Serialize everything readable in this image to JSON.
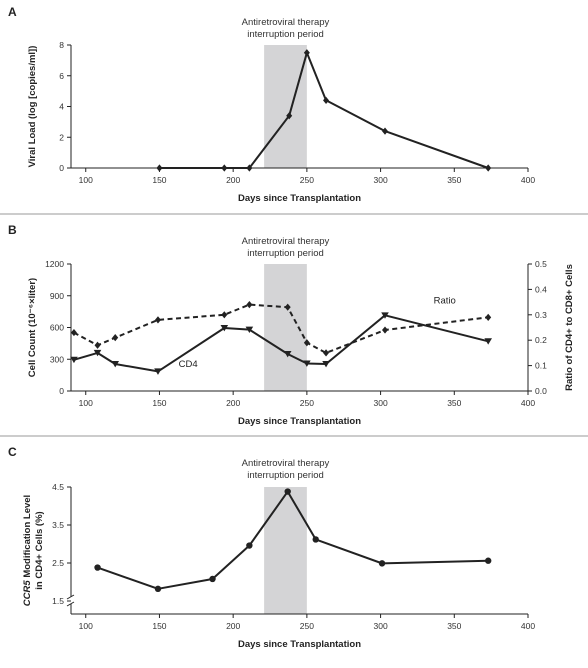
{
  "chart_data": [
    {
      "panel": "A",
      "type": "line",
      "annotation": "Antiretroviral therapy\ninterruption period",
      "shade_x": [
        221,
        250
      ],
      "xlabel": "Days since Transplantation",
      "ylabel": "Viral Load (log [copies/ml])",
      "xlim": [
        90,
        400
      ],
      "xticks": [
        100,
        150,
        200,
        250,
        300,
        350,
        400
      ],
      "ylim": [
        0,
        8
      ],
      "yticks": [
        0,
        2,
        4,
        6,
        8
      ],
      "series": [
        {
          "marker": "diamond",
          "style": "solid",
          "x": [
            150,
            194,
            211,
            238,
            250,
            263,
            303,
            373
          ],
          "y": [
            0,
            0,
            0,
            3.4,
            7.5,
            4.4,
            2.4,
            0
          ]
        }
      ]
    },
    {
      "panel": "B",
      "type": "line",
      "annotation": "Antiretroviral therapy\ninterruption period",
      "shade_x": [
        221,
        250
      ],
      "xlabel": "Days since Transplantation",
      "ylabel": "Cell Count (10⁻⁶×liter)",
      "ylabel_right": "Ratio of CD4+ to CD8+ Cells",
      "xlim": [
        90,
        400
      ],
      "xticks": [
        100,
        150,
        200,
        250,
        300,
        350,
        400
      ],
      "ylim": [
        0,
        1200
      ],
      "yticks": [
        0,
        300,
        600,
        900,
        1200
      ],
      "ylim_right": [
        0,
        0.5
      ],
      "yticks_right": [
        "0.0",
        "0.1",
        "0.2",
        "0.3",
        "0.4",
        "0.5"
      ],
      "series": [
        {
          "name": "CD4",
          "axis": "left",
          "marker": "triangle-down",
          "style": "solid",
          "x": [
            92,
            108,
            120,
            149,
            194,
            211,
            237,
            250,
            263,
            303,
            373
          ],
          "y": [
            295,
            360,
            255,
            185,
            595,
            580,
            350,
            260,
            255,
            715,
            470
          ]
        },
        {
          "name": "Ratio",
          "axis": "right",
          "marker": "diamond",
          "style": "dashed",
          "x": [
            92,
            108,
            120,
            149,
            194,
            211,
            237,
            250,
            263,
            303,
            373
          ],
          "y": [
            0.23,
            0.18,
            0.21,
            0.28,
            0.3,
            0.34,
            0.33,
            0.19,
            0.15,
            0.24,
            0.29
          ]
        }
      ]
    },
    {
      "panel": "C",
      "type": "line",
      "annotation": "Antiretroviral therapy\ninterruption period",
      "shade_x": [
        221,
        250
      ],
      "xlabel": "Days since Transplantation",
      "ylabel_italic": "CCR5",
      "ylabel_line1": " Modification Level",
      "ylabel_line2": "in CD4+ Cells (%)",
      "xlim": [
        90,
        400
      ],
      "xticks": [
        100,
        150,
        200,
        250,
        300,
        350,
        400
      ],
      "ylim": [
        1.5,
        4.5
      ],
      "yticks": [
        "1.5",
        "2.5",
        "3.5",
        "4.5"
      ],
      "axis_break": true,
      "series": [
        {
          "marker": "circle",
          "style": "solid",
          "x": [
            108,
            149,
            186,
            211,
            237,
            256,
            301,
            373
          ],
          "y": [
            2.38,
            1.82,
            2.08,
            2.96,
            4.38,
            3.12,
            2.49,
            2.56
          ]
        }
      ]
    }
  ]
}
